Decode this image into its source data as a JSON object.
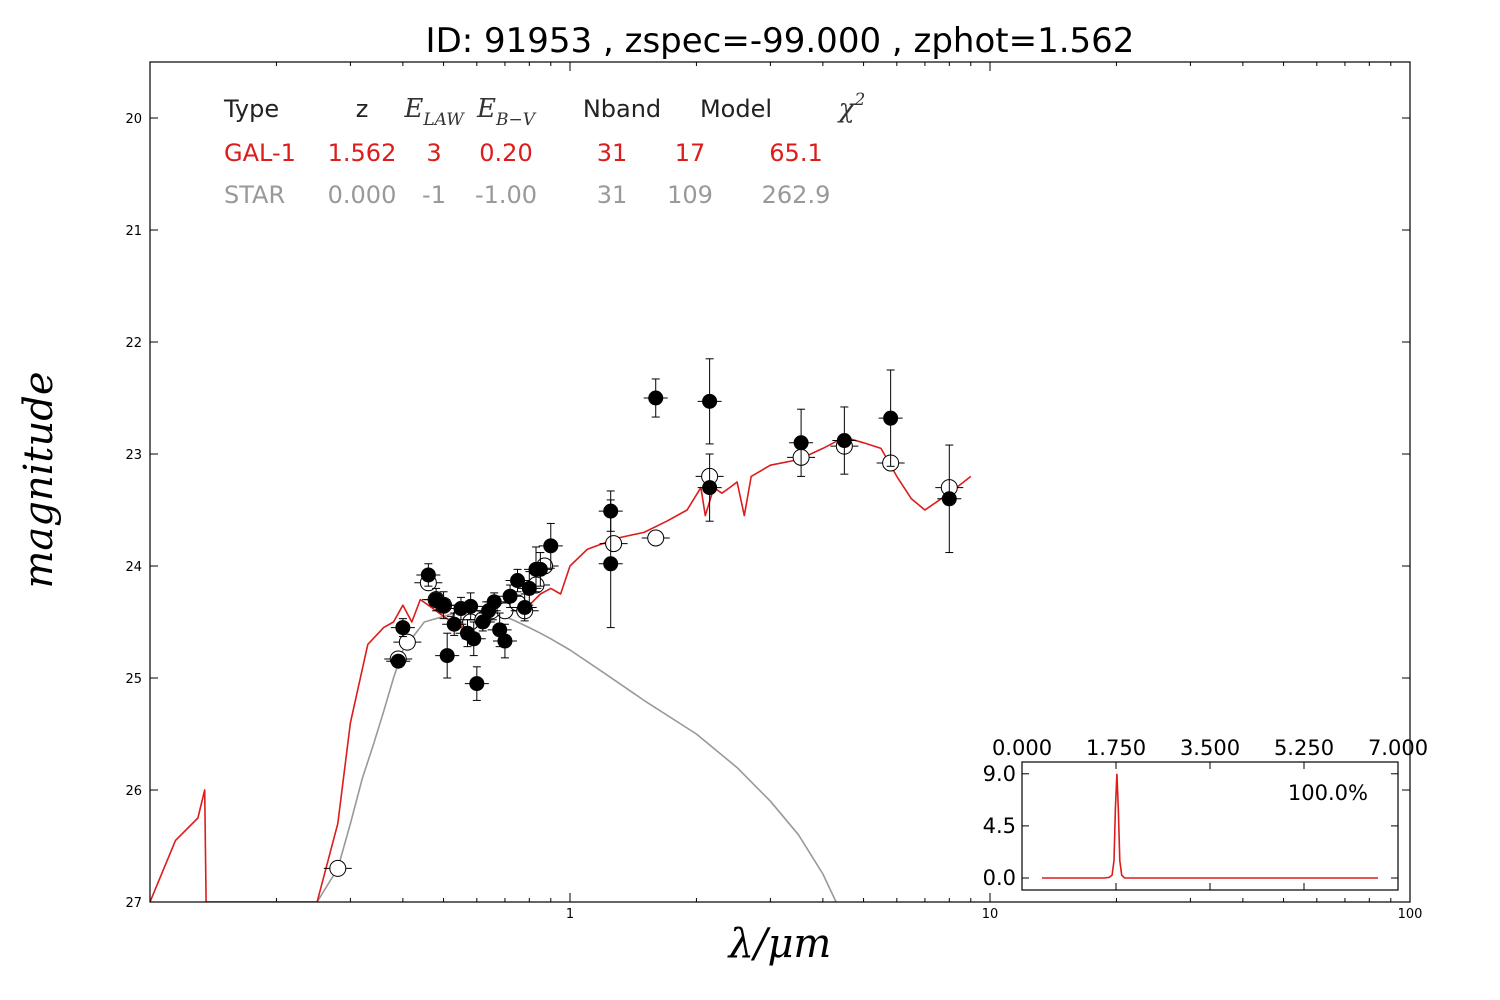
{
  "colors": {
    "galaxy": "#dd1c1c",
    "star": "#999999",
    "axis": "#000000"
  },
  "chart_data": [
    {
      "type": "line",
      "title": "ID:  91953 , zspec=-99.000 , zphot=1.562",
      "xlabel": "λ/μm",
      "ylabel": "magnitude",
      "xscale": "log",
      "xlim": [
        0.1,
        100
      ],
      "ylim": [
        27,
        19.5
      ],
      "y_inverted": true,
      "xticks": [
        "1",
        "10",
        "100"
      ],
      "yticks": [
        "20",
        "21",
        "22",
        "23",
        "24",
        "25",
        "26",
        "27"
      ],
      "grid": false,
      "legend_table": {
        "headers": [
          "Type",
          "z",
          "E_LAW",
          "E_B-V",
          "Nband",
          "Model",
          "χ²"
        ],
        "rows": [
          {
            "label": "GAL-1",
            "values": [
              "1.562",
              "3",
              "0.20",
              "31",
              "17",
              "65.1"
            ],
            "color": "#dd1c1c"
          },
          {
            "label": "STAR",
            "values": [
              "0.000",
              "-1",
              "-1.00",
              "31",
              "109",
              "262.9"
            ],
            "color": "#999999"
          }
        ]
      },
      "series": [
        {
          "role": "galaxy-model",
          "color": "#dd1c1c",
          "x": [
            0.1,
            0.115,
            0.13,
            0.135,
            0.136,
            0.25,
            0.28,
            0.3,
            0.33,
            0.36,
            0.38,
            0.4,
            0.42,
            0.44,
            0.46,
            0.48,
            0.5,
            0.55,
            0.6,
            0.65,
            0.7,
            0.75,
            0.8,
            0.85,
            0.9,
            0.95,
            1.0,
            1.1,
            1.3,
            1.5,
            1.7,
            1.9,
            2.05,
            2.1,
            2.2,
            2.3,
            2.4,
            2.5,
            2.6,
            2.7,
            3.0,
            3.5,
            4.0,
            4.5,
            5.0,
            5.5,
            6.0,
            6.5,
            7.0,
            8.0,
            9.0
          ],
          "y": [
            27.0,
            26.45,
            26.25,
            26.0,
            27.0,
            27.0,
            26.3,
            25.4,
            24.7,
            24.55,
            24.5,
            24.35,
            24.5,
            24.3,
            24.35,
            24.4,
            24.45,
            24.55,
            24.45,
            24.4,
            24.35,
            24.3,
            24.35,
            24.25,
            24.2,
            24.25,
            24.0,
            23.85,
            23.75,
            23.7,
            23.6,
            23.5,
            23.3,
            23.55,
            23.3,
            23.35,
            23.3,
            23.25,
            23.55,
            23.2,
            23.1,
            23.05,
            22.95,
            22.85,
            22.9,
            22.95,
            23.2,
            23.4,
            23.5,
            23.35,
            23.2
          ]
        },
        {
          "role": "star-model",
          "color": "#999999",
          "x": [
            0.25,
            0.28,
            0.3,
            0.32,
            0.34,
            0.36,
            0.38,
            0.4,
            0.45,
            0.5,
            0.55,
            0.6,
            0.65,
            0.7,
            0.75,
            0.8,
            0.85,
            0.9,
            1.0,
            1.2,
            1.5,
            2.0,
            2.5,
            3.0,
            3.5,
            4.0,
            4.3
          ],
          "y": [
            27.0,
            26.7,
            26.3,
            25.9,
            25.6,
            25.3,
            25.0,
            24.75,
            24.5,
            24.45,
            24.4,
            24.4,
            24.42,
            24.45,
            24.5,
            24.55,
            24.6,
            24.65,
            24.75,
            24.95,
            25.2,
            25.5,
            25.8,
            26.1,
            26.4,
            26.75,
            27.0
          ]
        },
        {
          "role": "observed-photometry",
          "marker": "filled-circle",
          "x": [
            0.39,
            0.4,
            0.46,
            0.48,
            0.5,
            0.51,
            0.53,
            0.55,
            0.57,
            0.58,
            0.59,
            0.6,
            0.62,
            0.64,
            0.66,
            0.68,
            0.7,
            0.72,
            0.75,
            0.78,
            0.8,
            0.83,
            0.85,
            0.9,
            1.25,
            1.25,
            1.6,
            2.15,
            2.15,
            3.55,
            4.5,
            5.8,
            8.0
          ],
          "y": [
            24.85,
            24.55,
            24.08,
            24.3,
            24.35,
            24.8,
            24.52,
            24.38,
            24.6,
            24.36,
            24.65,
            25.05,
            24.5,
            24.4,
            24.32,
            24.57,
            24.67,
            24.27,
            24.13,
            24.37,
            24.2,
            24.03,
            24.03,
            23.82,
            23.51,
            23.98,
            22.5,
            22.53,
            23.3,
            22.9,
            22.88,
            22.68,
            23.4
          ],
          "yerr": [
            0.05,
            0.08,
            0.1,
            0.1,
            0.12,
            0.2,
            0.1,
            0.1,
            0.12,
            0.12,
            0.15,
            0.15,
            0.08,
            0.08,
            0.08,
            0.15,
            0.15,
            0.1,
            0.1,
            0.12,
            0.15,
            0.2,
            0.15,
            0.2,
            0.18,
            0.57,
            0.17,
            0.38,
            0.3,
            0.3,
            0.3,
            0.43,
            0.48
          ]
        },
        {
          "role": "model-photometry",
          "marker": "open-circle",
          "x": [
            0.28,
            0.39,
            0.41,
            0.46,
            0.48,
            0.5,
            0.55,
            0.58,
            0.62,
            0.65,
            0.7,
            0.75,
            0.78,
            0.83,
            0.87,
            1.27,
            1.6,
            2.15,
            3.55,
            4.5,
            5.8,
            8.0
          ],
          "y": [
            26.7,
            24.83,
            24.68,
            24.15,
            24.3,
            24.35,
            24.45,
            24.5,
            24.48,
            24.4,
            24.4,
            24.33,
            24.4,
            24.17,
            24.0,
            23.8,
            23.75,
            23.2,
            23.03,
            22.93,
            23.08,
            23.3
          ]
        }
      ]
    },
    {
      "type": "line",
      "role": "inset-pdz",
      "xlim": [
        0,
        7
      ],
      "ylim": [
        0,
        9.5
      ],
      "xticks": [
        "0.000",
        "1.750",
        "3.500",
        "5.250",
        "7.000"
      ],
      "yticks": [
        "0.0",
        "4.5",
        "9.0"
      ],
      "annotation": "100.0%",
      "color": "#dd1c1c",
      "x": [
        0.0,
        1.3,
        1.4,
        1.46,
        1.5,
        1.53,
        1.56,
        1.59,
        1.62,
        1.66,
        1.72,
        7.0
      ],
      "y": [
        0.0,
        0.0,
        0.05,
        0.25,
        1.5,
        6.0,
        9.0,
        6.0,
        1.5,
        0.25,
        0.0,
        0.0
      ]
    }
  ]
}
